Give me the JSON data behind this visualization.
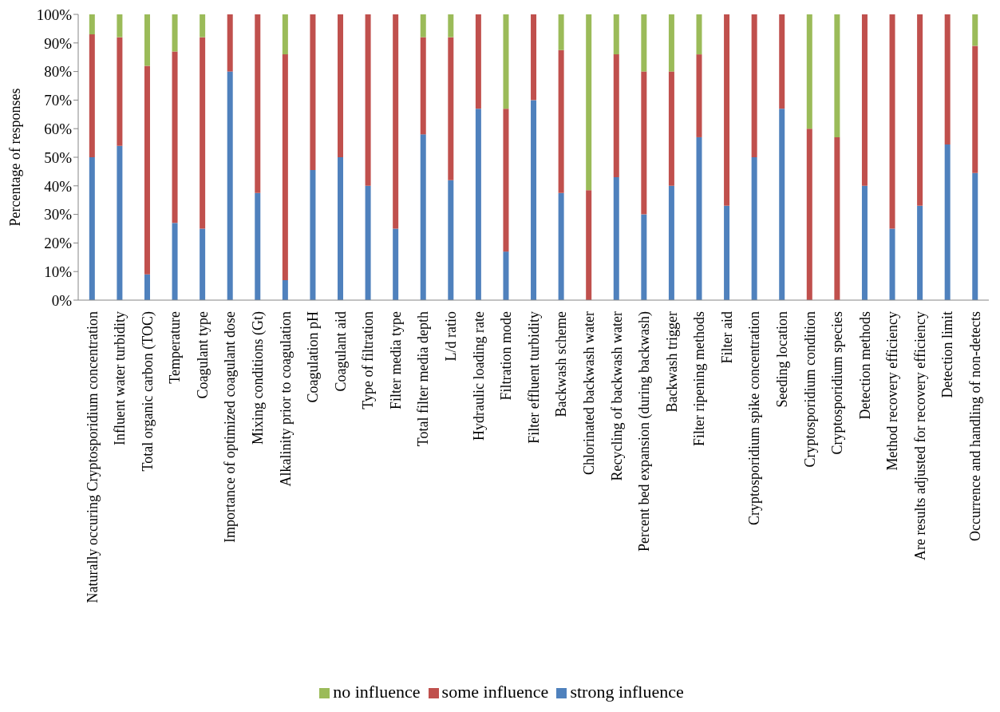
{
  "chart_data": {
    "type": "bar",
    "stacked": true,
    "ylabel": "Percentage of responses",
    "categories": [
      "Naturally occuring Cryptosporidium concentration",
      "Influent water turbidity",
      "Total organic carbon (TOC)",
      "Temperature",
      "Coagulant type",
      "Importance of optimized coagulant dose",
      "Mixing conditions (Gt)",
      "Alkalinity prior to coagulation",
      "Coagulation pH",
      "Coagulant aid",
      "Type of filtration",
      "Filter media type",
      "Total filter media depth",
      "L/d ratio",
      "Hydraulic loading rate",
      "Filtration mode",
      "Filter effluent turbidity",
      "Backwash scheme",
      "Chlorinated backwash water",
      "Recycling of backwash water",
      "Percent bed expansion (during backwash)",
      "Backwash trigger",
      "Filter ripening methods",
      "Filter aid",
      "Cryptosporidium spike concentration",
      "Seeding location",
      "Cryptosporidium condition",
      "Cryptosporidium species",
      "Detection methods",
      "Method recovery efficiency",
      "Are results adjusted for recovery efficiency",
      "Detection limit",
      "Occurrence and handling of non-detects"
    ],
    "series": [
      {
        "name": "strong influence",
        "color": "#4f81bd",
        "values": [
          50,
          54,
          9,
          27,
          25,
          80,
          37.5,
          7,
          45.5,
          50,
          40,
          25,
          58,
          42,
          67,
          17,
          70,
          37.5,
          0,
          43,
          30,
          40,
          57,
          33,
          50,
          67,
          0,
          0,
          40,
          25,
          33,
          54.5,
          44.5
        ]
      },
      {
        "name": "some influence",
        "color": "#c0504d",
        "values": [
          43,
          38,
          73,
          60,
          67,
          20,
          62.5,
          79,
          54.5,
          50,
          60,
          75,
          34,
          50,
          33,
          50,
          30,
          50,
          38.5,
          43,
          50,
          40,
          29,
          67,
          50,
          33,
          60,
          57,
          60,
          75,
          67,
          45.5,
          44.5
        ]
      },
      {
        "name": "no influence",
        "color": "#9bbb59",
        "values": [
          7,
          8,
          18,
          13,
          8,
          0,
          0,
          14,
          0,
          0,
          0,
          0,
          8,
          8,
          0,
          33,
          0,
          12.5,
          61.5,
          14,
          20,
          20,
          14,
          0,
          0,
          0,
          40,
          43,
          0,
          0,
          0,
          0,
          11
        ]
      }
    ],
    "ylim": [
      0,
      100
    ],
    "yticks": [
      {
        "value": 0,
        "label": "0%"
      },
      {
        "value": 10,
        "label": "10%"
      },
      {
        "value": 20,
        "label": "20%"
      },
      {
        "value": 30,
        "label": "30%"
      },
      {
        "value": 40,
        "label": "40%"
      },
      {
        "value": 50,
        "label": "50%"
      },
      {
        "value": 60,
        "label": "60%"
      },
      {
        "value": 70,
        "label": "70%"
      },
      {
        "value": 80,
        "label": "80%"
      },
      {
        "value": 90,
        "label": "90%"
      },
      {
        "value": 100,
        "label": "100%"
      }
    ],
    "legend": "bottom"
  }
}
